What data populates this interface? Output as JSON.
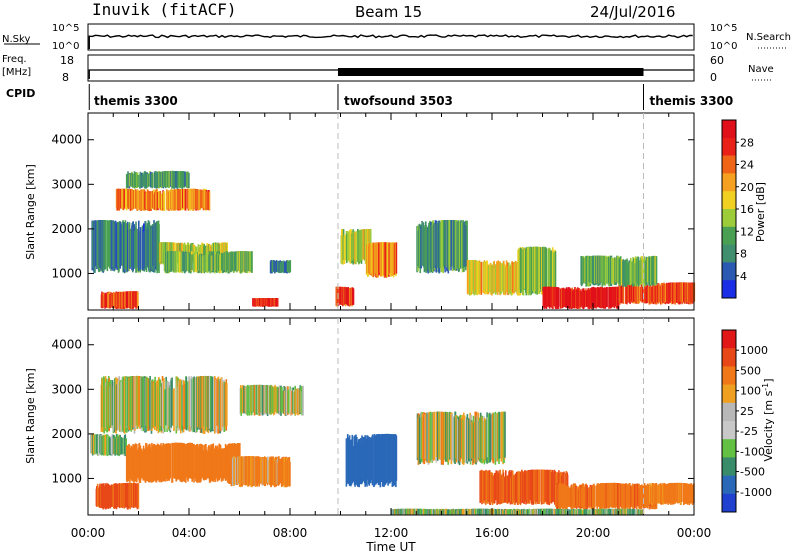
{
  "header": {
    "station": "Inuvik (fitACF)",
    "beam": "Beam 15",
    "date": "24/Jul/2016"
  },
  "strip": {
    "nsky_label": "N.Sky",
    "nsky_ticks": [
      "10^5",
      "10^0"
    ],
    "nsearch_label": "N.Search",
    "nsearch_ticks": [
      "10^5",
      "10^0"
    ],
    "freq_label": "Freq.",
    "freq_unit": "[MHz]",
    "freq_ticks": [
      "18",
      "8"
    ],
    "nave_label": "Nave",
    "nave_ticks": [
      "60",
      "0"
    ],
    "cpid_label": "CPID",
    "cpid_segments": [
      {
        "name": "themis 3300",
        "start": 0.0,
        "end": 9.9
      },
      {
        "name": "twofsound 3503",
        "start": 9.9,
        "end": 22.0
      },
      {
        "name": "themis 3300",
        "start": 22.0,
        "end": 24.0
      }
    ]
  },
  "colors": {
    "power": [
      "#1a2ee6",
      "#2b58b0",
      "#3f8e6e",
      "#4aa052",
      "#9ccc3a",
      "#f0d020",
      "#f5a020",
      "#f06418",
      "#e82018",
      "#e0101a"
    ],
    "velocity": [
      "#2040d0",
      "#2a68b8",
      "#388c6a",
      "#62c042",
      "#c8c8c8",
      "#b8b8b8",
      "#f0a020",
      "#f07818",
      "#e84818",
      "#e01818"
    ]
  },
  "chart_data": [
    {
      "type": "heatmap",
      "name": "power",
      "xlabel": "Time UT",
      "ylabel": "Slant Range [km]",
      "x_range_hours": [
        0,
        24
      ],
      "ylim": [
        180,
        4600
      ],
      "y_ticks": [
        1000,
        2000,
        3000,
        4000
      ],
      "x_ticks": [
        "00:00",
        "04:00",
        "08:00",
        "12:00",
        "16:00",
        "20:00",
        "00:00"
      ],
      "colorbar": {
        "label": "Power [dB]",
        "ticks": [
          "28",
          "24",
          "20",
          "16",
          "12",
          "8",
          "4"
        ],
        "range": [
          0,
          32
        ]
      },
      "regions": [
        {
          "t0": 0.1,
          "t1": 2.8,
          "r0": 1000,
          "r1": 2200,
          "value": 8
        },
        {
          "t0": 1.1,
          "t1": 4.8,
          "r0": 2400,
          "r1": 2900,
          "value": 22
        },
        {
          "t0": 1.5,
          "t1": 4.0,
          "r0": 2900,
          "r1": 3300,
          "value": 10
        },
        {
          "t0": 2.8,
          "t1": 5.5,
          "r0": 1200,
          "r1": 1700,
          "value": 16
        },
        {
          "t0": 0.5,
          "t1": 2.0,
          "r0": 200,
          "r1": 600,
          "value": 26
        },
        {
          "t0": 3.0,
          "t1": 6.5,
          "r0": 1000,
          "r1": 1500,
          "value": 12
        },
        {
          "t0": 7.2,
          "t1": 8.0,
          "r0": 1000,
          "r1": 1300,
          "value": 8
        },
        {
          "t0": 6.5,
          "t1": 7.5,
          "r0": 250,
          "r1": 450,
          "value": 28
        },
        {
          "t0": 10.0,
          "t1": 11.2,
          "r0": 1200,
          "r1": 2000,
          "value": 16
        },
        {
          "t0": 11.0,
          "t1": 12.2,
          "r0": 900,
          "r1": 1700,
          "value": 22
        },
        {
          "t0": 13.0,
          "t1": 15.0,
          "r0": 1000,
          "r1": 2200,
          "value": 10
        },
        {
          "t0": 15.0,
          "t1": 17.0,
          "r0": 500,
          "r1": 1300,
          "value": 18
        },
        {
          "t0": 17.0,
          "t1": 18.5,
          "r0": 500,
          "r1": 1600,
          "value": 14
        },
        {
          "t0": 18.0,
          "t1": 21.0,
          "r0": 200,
          "r1": 700,
          "value": 30
        },
        {
          "t0": 21.0,
          "t1": 24.0,
          "r0": 300,
          "r1": 800,
          "value": 26
        },
        {
          "t0": 19.5,
          "t1": 22.5,
          "r0": 700,
          "r1": 1400,
          "value": 12
        },
        {
          "t0": 9.8,
          "t1": 10.5,
          "r0": 250,
          "r1": 700,
          "value": 26
        }
      ]
    },
    {
      "type": "heatmap",
      "name": "velocity",
      "xlabel": "Time UT",
      "ylabel": "Slant Range [km]",
      "x_range_hours": [
        0,
        24
      ],
      "ylim": [
        180,
        4600
      ],
      "y_ticks": [
        1000,
        2000,
        3000,
        4000
      ],
      "x_ticks": [
        "00:00",
        "04:00",
        "08:00",
        "12:00",
        "16:00",
        "20:00",
        "00:00"
      ],
      "colorbar": {
        "label": "Velocity [m s-1]",
        "ticks": [
          "1000",
          "500",
          "100",
          "25",
          "-25",
          "-100",
          "-500",
          "-1000"
        ],
        "range": [
          -1200,
          1200
        ]
      },
      "regions": [
        {
          "t0": 0.5,
          "t1": 5.5,
          "r0": 2000,
          "r1": 3300,
          "value": 10
        },
        {
          "t0": 0.1,
          "t1": 1.5,
          "r0": 1500,
          "r1": 2000,
          "value": 80
        },
        {
          "t0": 1.5,
          "t1": 6.0,
          "r0": 900,
          "r1": 1800,
          "value": -300
        },
        {
          "t0": 0.3,
          "t1": 2.0,
          "r0": 300,
          "r1": 900,
          "value": -600
        },
        {
          "t0": 5.5,
          "t1": 8.0,
          "r0": 800,
          "r1": 1500,
          "value": -150
        },
        {
          "t0": 10.2,
          "t1": 12.2,
          "r0": 800,
          "r1": 2000,
          "value": 800
        },
        {
          "t0": 13.0,
          "t1": 16.5,
          "r0": 1300,
          "r1": 2500,
          "value": 10
        },
        {
          "t0": 15.5,
          "t1": 19.0,
          "r0": 400,
          "r1": 1200,
          "value": -500
        },
        {
          "t0": 18.5,
          "t1": 22.5,
          "r0": 300,
          "r1": 900,
          "value": -400
        },
        {
          "t0": 12.0,
          "t1": 22.0,
          "r0": 180,
          "r1": 320,
          "value": 60
        },
        {
          "t0": 22.0,
          "t1": 24.0,
          "r0": 400,
          "r1": 900,
          "value": -200
        },
        {
          "t0": 6.0,
          "t1": 8.5,
          "r0": 2400,
          "r1": 3100,
          "value": 5
        }
      ]
    }
  ]
}
